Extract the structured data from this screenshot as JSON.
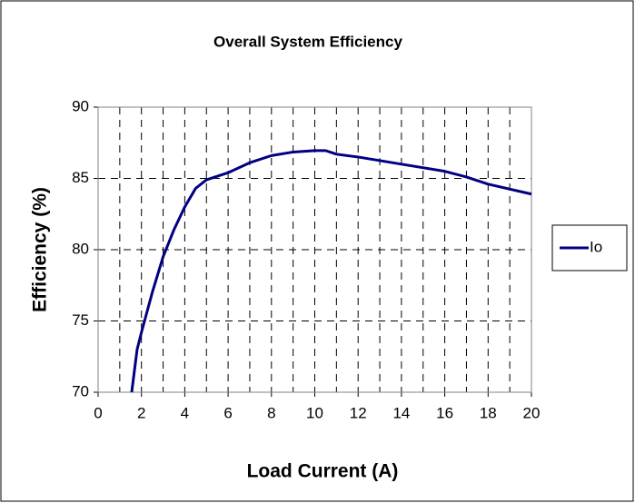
{
  "chart_data": {
    "type": "line",
    "title": "Overall System Efficiency",
    "x_label": "Load Current (A)",
    "y_label": "Efficiency (%)",
    "x": [
      1.55,
      1.8,
      2,
      2.5,
      3,
      3.5,
      4,
      4.5,
      5,
      6,
      7,
      8,
      9,
      10,
      10.5,
      11,
      12,
      14,
      16,
      17,
      18,
      20
    ],
    "series": [
      {
        "name": "Io",
        "color": "#000080",
        "values": [
          70,
          73,
          74.2,
          77,
          79.5,
          81.4,
          83,
          84.3,
          84.9,
          85.4,
          86.1,
          86.6,
          86.85,
          86.95,
          86.95,
          86.7,
          86.5,
          86,
          85.5,
          85.1,
          84.6,
          83.9
        ]
      }
    ],
    "xlim": [
      0,
      20
    ],
    "xticks": [
      0,
      2,
      4,
      6,
      8,
      10,
      12,
      14,
      16,
      18,
      20
    ],
    "xgrid_minor": [
      1,
      3,
      5,
      7,
      9,
      11,
      13,
      15,
      17,
      19
    ],
    "ylim": [
      70,
      90
    ],
    "yticks": [
      70,
      75,
      80,
      85,
      90
    ],
    "grid": true,
    "legend": "right"
  }
}
